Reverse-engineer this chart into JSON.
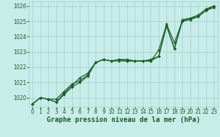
{
  "title": "Graphe pression niveau de la mer (hPa)",
  "background_color": "#c8ece8",
  "grid_color": "#9ecfca",
  "line_color": "#1a5e2a",
  "marker_color": "#1a5e2a",
  "xlim": [
    -0.5,
    23.5
  ],
  "ylim": [
    1019.4,
    1026.3
  ],
  "yticks": [
    1020,
    1021,
    1022,
    1023,
    1024,
    1025,
    1026
  ],
  "xticks": [
    0,
    1,
    2,
    3,
    4,
    5,
    6,
    7,
    8,
    9,
    10,
    11,
    12,
    13,
    14,
    15,
    16,
    17,
    18,
    19,
    20,
    21,
    22,
    23
  ],
  "series1": [
    1019.6,
    1020.0,
    1019.9,
    1019.7,
    1020.3,
    1020.8,
    1021.3,
    1021.6,
    1022.3,
    1022.5,
    1022.4,
    1022.5,
    1022.5,
    1022.4,
    1022.4,
    1022.4,
    1022.7,
    1024.7,
    1023.2,
    1025.1,
    1025.2,
    1025.4,
    1025.8,
    1026.0
  ],
  "series2": [
    1019.6,
    1020.0,
    1019.9,
    1019.9,
    1020.4,
    1020.9,
    1021.1,
    1021.5,
    1022.3,
    1022.5,
    1022.4,
    1022.4,
    1022.4,
    1022.4,
    1022.4,
    1022.4,
    1023.1,
    1024.8,
    1023.6,
    1025.0,
    1025.1,
    1025.3,
    1025.7,
    1025.9
  ],
  "series3": [
    1019.6,
    1020.0,
    1019.9,
    1019.7,
    1020.2,
    1020.7,
    1021.0,
    1021.4,
    1022.3,
    1022.5,
    1022.4,
    1022.5,
    1022.4,
    1022.4,
    1022.4,
    1022.5,
    1022.7,
    1024.7,
    1023.2,
    1025.0,
    1025.2,
    1025.3,
    1025.7,
    1026.0
  ],
  "tick_fontsize": 5.5,
  "title_fontsize": 7.0
}
